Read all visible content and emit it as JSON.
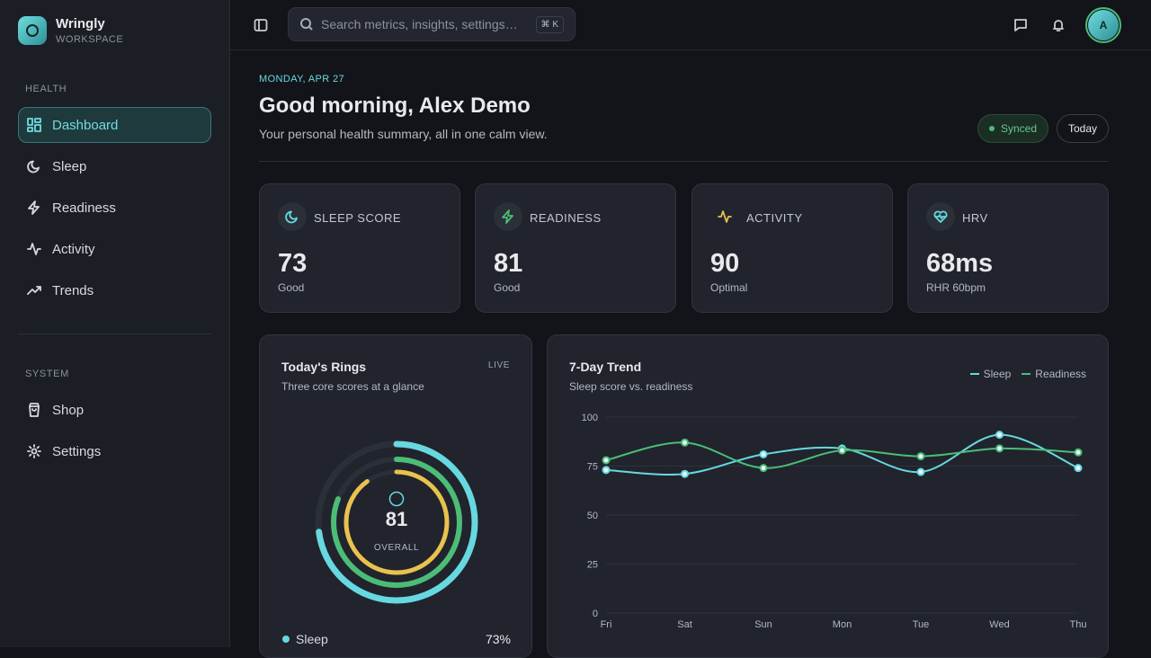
{
  "sidebar": {
    "brand": "Wringly",
    "workspace": "WORKSPACE",
    "sections": [
      {
        "title": "HEALTH",
        "items": [
          "Dashboard",
          "Sleep",
          "Readiness",
          "Activity",
          "Trends"
        ]
      },
      {
        "title": "SYSTEM",
        "items": [
          "Shop",
          "Settings"
        ]
      }
    ]
  },
  "topbar": {
    "search_placeholder": "Search metrics, insights, settings…",
    "shortcut": "⌘ K",
    "avatar": "A"
  },
  "header": {
    "date": "MONDAY, APR 27",
    "greeting": "Good morning, Alex Demo",
    "subtitle": "Your personal health summary, all in one calm view.",
    "status": "Synced",
    "range": "Today"
  },
  "cards": [
    {
      "label": "SLEEP SCORE",
      "value": 73,
      "note": "Good"
    },
    {
      "label": "READINESS",
      "value": 81,
      "note": "Good"
    },
    {
      "label": "ACTIVITY",
      "value": 90,
      "note": "Optimal"
    },
    {
      "label": "HRV",
      "value": "68ms",
      "note": "RHR 60bpm"
    }
  ],
  "rings": {
    "title": "Today's Rings",
    "badge": "LIVE",
    "subtitle": "Three core scores at a glance",
    "center_value": 81,
    "center_label": "OVERALL",
    "arcs": [
      {
        "name": "Sleep",
        "value": 73,
        "value_label": "73%",
        "color": "#67d8e0"
      },
      {
        "value": 81,
        "color": "#4cbd77"
      },
      {
        "value": 90,
        "color": "#e9c24e"
      }
    ]
  },
  "chart_data": {
    "type": "line",
    "title": "7-Day Trend",
    "subtitle": "Sleep score vs. readiness",
    "categories": [
      "Fri",
      "Sat",
      "Sun",
      "Mon",
      "Tue",
      "Wed",
      "Thu"
    ],
    "series": [
      {
        "name": "Sleep",
        "color": "#67d8e0",
        "values": [
          73,
          71,
          81,
          84,
          72,
          91,
          74
        ]
      },
      {
        "name": "Readiness",
        "color": "#4cbd77",
        "values": [
          78,
          87,
          74,
          83,
          80,
          84,
          82
        ]
      }
    ],
    "ylim": [
      0,
      100
    ],
    "yticks": [
      0,
      25,
      50,
      75,
      100
    ],
    "grid": true,
    "legend": "top-right"
  }
}
